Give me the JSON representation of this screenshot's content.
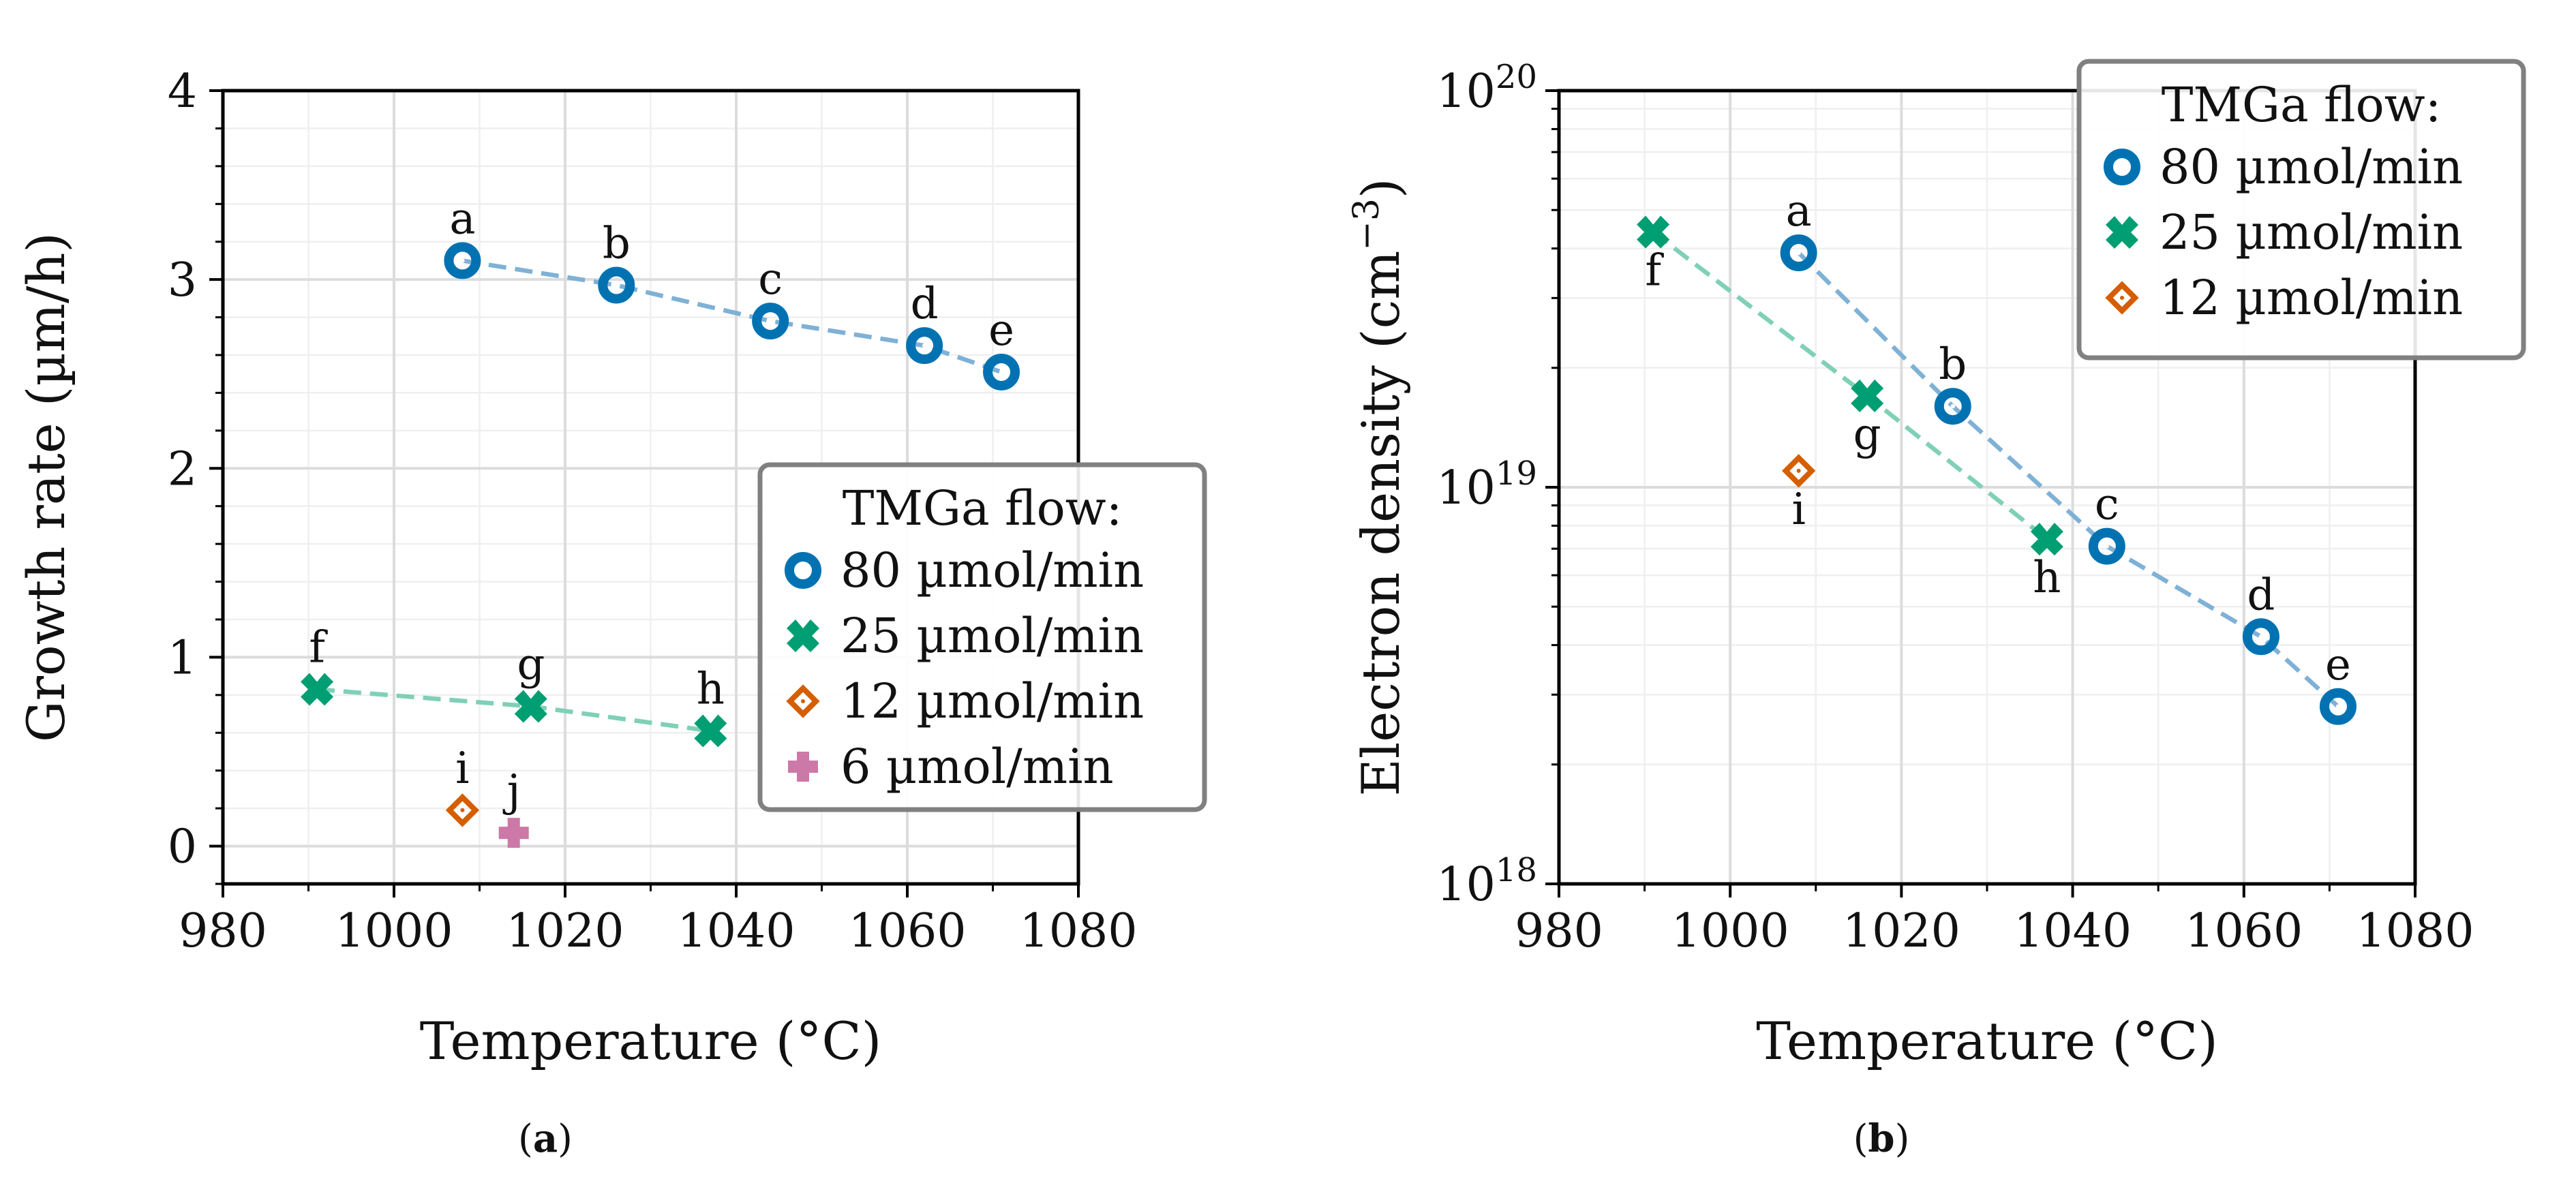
{
  "figure": {
    "captions": [
      {
        "open": "(",
        "letter": "a",
        "close": ")"
      },
      {
        "open": "(",
        "letter": "b",
        "close": ")"
      }
    ]
  },
  "chart_data": [
    {
      "id": "a",
      "type": "scatter",
      "yscale": "linear",
      "xlabel": "Temperature (°C)",
      "ylabel": "Growth rate (µm/h)",
      "xlim": [
        980,
        1080
      ],
      "ylim": [
        -0.2,
        4
      ],
      "xticks": [
        980,
        1000,
        1020,
        1040,
        1060,
        1080
      ],
      "xtick_labels": [
        "980",
        "1000",
        "1020",
        "1040",
        "1060",
        "1080"
      ],
      "yticks": [
        0,
        1,
        2,
        3,
        4
      ],
      "ytick_labels": [
        "0",
        "1",
        "2",
        "3",
        "4"
      ],
      "grid": true,
      "legend": {
        "title": "TMGa flow:",
        "placement": "lower-right",
        "entries": [
          "80 µmol/min",
          "25 µmol/min",
          "12 µmol/min",
          "6 µmol/min"
        ]
      },
      "series": [
        {
          "name": "80 µmol/min",
          "marker": "circle",
          "color": "#0072b2",
          "line_color": "#7fb1d6",
          "dashed_line": true,
          "points": [
            {
              "label": "a",
              "x": 1008,
              "y": 3.1,
              "label_pos": "above"
            },
            {
              "label": "b",
              "x": 1026,
              "y": 2.97,
              "label_pos": "above"
            },
            {
              "label": "c",
              "x": 1044,
              "y": 2.78,
              "label_pos": "above"
            },
            {
              "label": "d",
              "x": 1062,
              "y": 2.65,
              "label_pos": "above"
            },
            {
              "label": "e",
              "x": 1071,
              "y": 2.51,
              "label_pos": "above"
            }
          ]
        },
        {
          "name": "25 µmol/min",
          "marker": "x",
          "color": "#009e73",
          "line_color": "#7fd0b7",
          "dashed_line": true,
          "points": [
            {
              "label": "f",
              "x": 991,
              "y": 0.83,
              "label_pos": "above"
            },
            {
              "label": "g",
              "x": 1016,
              "y": 0.74,
              "label_pos": "above"
            },
            {
              "label": "h",
              "x": 1037,
              "y": 0.61,
              "label_pos": "above"
            }
          ]
        },
        {
          "name": "12 µmol/min",
          "marker": "diamond",
          "color": "#d55e00",
          "dashed_line": false,
          "points": [
            {
              "label": "i",
              "x": 1008,
              "y": 0.19,
              "label_pos": "above"
            }
          ]
        },
        {
          "name": "6 µmol/min",
          "marker": "plus",
          "color": "#cc79a7",
          "dashed_line": false,
          "points": [
            {
              "label": "j",
              "x": 1014,
              "y": 0.07,
              "label_pos": "above"
            }
          ]
        }
      ]
    },
    {
      "id": "b",
      "type": "scatter",
      "yscale": "log",
      "xlabel": "Temperature (°C)",
      "ylabel": "Electron density (cm",
      "ylabel_exp": "−3",
      "ylabel_close": ")",
      "xlim": [
        980,
        1080
      ],
      "ylim": [
        1e+18,
        1e+20
      ],
      "xticks": [
        980,
        1000,
        1020,
        1040,
        1060,
        1080
      ],
      "xtick_labels": [
        "980",
        "1000",
        "1020",
        "1040",
        "1060",
        "1080"
      ],
      "yticks": [
        1e+18,
        1e+19,
        1e+20
      ],
      "ytick_labels": [
        {
          "base": "10",
          "exp": "18"
        },
        {
          "base": "10",
          "exp": "19"
        },
        {
          "base": "10",
          "exp": "20"
        }
      ],
      "grid": true,
      "legend": {
        "title": "TMGa flow:",
        "placement": "top-right",
        "entries": [
          "80 µmol/min",
          "25 µmol/min",
          "12 µmol/min"
        ]
      },
      "series": [
        {
          "name": "80 µmol/min",
          "marker": "circle",
          "color": "#0072b2",
          "line_color": "#7fb1d6",
          "dashed_line": true,
          "points": [
            {
              "label": "a",
              "x": 1008,
              "y": 3.9e+19,
              "label_pos": "above"
            },
            {
              "label": "b",
              "x": 1026,
              "y": 1.6e+19,
              "label_pos": "above"
            },
            {
              "label": "c",
              "x": 1044,
              "y": 7.1e+18,
              "label_pos": "above"
            },
            {
              "label": "d",
              "x": 1062,
              "y": 4.2e+18,
              "label_pos": "above"
            },
            {
              "label": "e",
              "x": 1071,
              "y": 2.8e+18,
              "label_pos": "above"
            }
          ]
        },
        {
          "name": "25 µmol/min",
          "marker": "x",
          "color": "#009e73",
          "line_color": "#7fd0b7",
          "dashed_line": true,
          "points": [
            {
              "label": "f",
              "x": 991,
              "y": 4.4e+19,
              "label_pos": "below"
            },
            {
              "label": "g",
              "x": 1016,
              "y": 1.7e+19,
              "label_pos": "below"
            },
            {
              "label": "h",
              "x": 1037,
              "y": 7.4e+18,
              "label_pos": "below"
            }
          ]
        },
        {
          "name": "12 µmol/min",
          "marker": "diamond",
          "color": "#d55e00",
          "dashed_line": false,
          "points": [
            {
              "label": "i",
              "x": 1008,
              "y": 1.1e+19,
              "label_pos": "below"
            }
          ]
        }
      ]
    }
  ]
}
